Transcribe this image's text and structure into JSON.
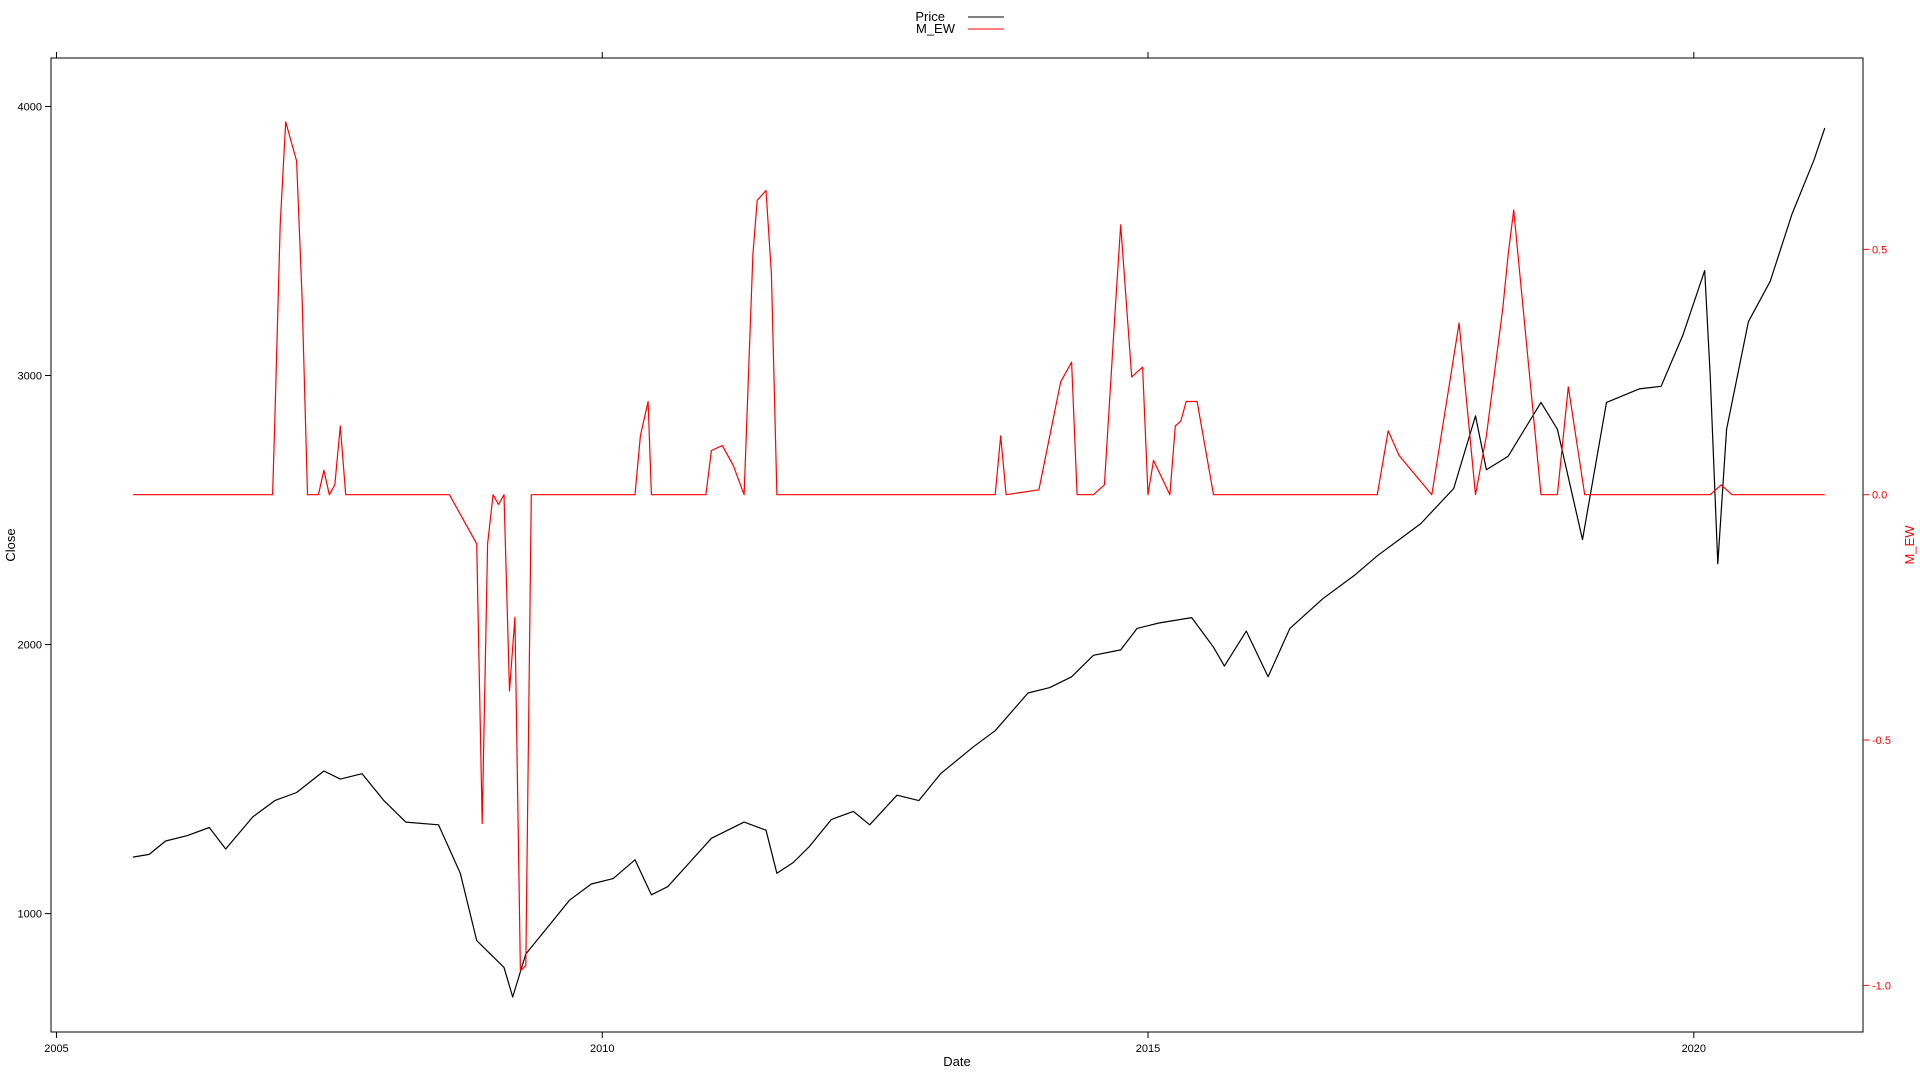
{
  "chart_data": {
    "type": "line",
    "title": "",
    "xlabel": "Date",
    "ylabel": "Close",
    "y2label": "M_EW",
    "grid": false,
    "legend_position": "top-center",
    "x_ticks": [
      "2005",
      "2010",
      "2015",
      "2020"
    ],
    "x_range": [
      2004.95,
      2021.55
    ],
    "y_ticks": [
      1000,
      2000,
      3000,
      4000
    ],
    "ylim": [
      560,
      4180
    ],
    "y2_ticks": [
      -1.0,
      -0.5,
      0.0,
      0.5
    ],
    "y2_tick_labels": [
      "-1.0",
      "-0.5",
      "0.0",
      "0.5"
    ],
    "y2lim": [
      -1.095,
      0.89
    ],
    "colors": {
      "Price": "#000000",
      "M_EW": "#ff0000"
    },
    "series": [
      {
        "name": "Price",
        "axis": "left",
        "x": [
          2005.7,
          2005.85,
          2006.0,
          2006.2,
          2006.4,
          2006.55,
          2006.8,
          2007.0,
          2007.2,
          2007.45,
          2007.6,
          2007.8,
          2008.0,
          2008.2,
          2008.5,
          2008.7,
          2008.85,
          2008.95,
          2009.1,
          2009.18,
          2009.3,
          2009.5,
          2009.7,
          2009.9,
          2010.1,
          2010.3,
          2010.45,
          2010.6,
          2010.8,
          2011.0,
          2011.3,
          2011.5,
          2011.6,
          2011.75,
          2011.9,
          2012.1,
          2012.3,
          2012.45,
          2012.7,
          2012.9,
          2013.1,
          2013.4,
          2013.6,
          2013.9,
          2014.1,
          2014.3,
          2014.5,
          2014.75,
          2014.9,
          2015.1,
          2015.4,
          2015.6,
          2015.7,
          2015.9,
          2016.1,
          2016.3,
          2016.6,
          2016.9,
          2017.1,
          2017.5,
          2017.8,
          2018.0,
          2018.1,
          2018.3,
          2018.6,
          2018.75,
          2018.98,
          2019.2,
          2019.5,
          2019.7,
          2019.9,
          2020.1,
          2020.15,
          2020.22,
          2020.3,
          2020.5,
          2020.7,
          2020.9,
          2021.1,
          2021.2
        ],
        "values": [
          1210,
          1220,
          1270,
          1290,
          1320,
          1240,
          1360,
          1420,
          1450,
          1530,
          1500,
          1520,
          1420,
          1340,
          1330,
          1150,
          900,
          860,
          800,
          690,
          850,
          950,
          1050,
          1110,
          1130,
          1200,
          1070,
          1100,
          1190,
          1280,
          1340,
          1310,
          1150,
          1190,
          1250,
          1350,
          1380,
          1330,
          1440,
          1420,
          1520,
          1620,
          1680,
          1820,
          1840,
          1880,
          1960,
          1980,
          2060,
          2080,
          2100,
          1990,
          1920,
          2050,
          1880,
          2060,
          2170,
          2260,
          2330,
          2450,
          2580,
          2850,
          2650,
          2700,
          2900,
          2800,
          2390,
          2900,
          2950,
          2960,
          3150,
          3390,
          3000,
          2300,
          2800,
          3200,
          3350,
          3600,
          3800,
          3920
        ]
      },
      {
        "name": "M_EW",
        "axis": "right",
        "x": [
          2005.7,
          2006.5,
          2006.98,
          2007.0,
          2007.05,
          2007.1,
          2007.15,
          2007.2,
          2007.25,
          2007.3,
          2007.4,
          2007.45,
          2007.5,
          2007.55,
          2007.6,
          2007.65,
          2007.7,
          2008.6,
          2008.85,
          2008.9,
          2008.95,
          2009.0,
          2009.05,
          2009.1,
          2009.15,
          2009.2,
          2009.25,
          2009.3,
          2009.35,
          2009.45,
          2009.5,
          2010.3,
          2010.35,
          2010.42,
          2010.45,
          2010.95,
          2011.0,
          2011.1,
          2011.2,
          2011.3,
          2011.38,
          2011.42,
          2011.5,
          2011.55,
          2011.6,
          2011.65,
          2013.5,
          2013.6,
          2013.65,
          2013.7,
          2014.0,
          2014.1,
          2014.2,
          2014.3,
          2014.35,
          2014.5,
          2014.6,
          2014.7,
          2014.75,
          2014.85,
          2014.95,
          2015.0,
          2015.05,
          2015.2,
          2015.25,
          2015.3,
          2015.35,
          2015.45,
          2015.6,
          2015.75,
          2017.0,
          2017.1,
          2017.2,
          2017.3,
          2017.6,
          2017.75,
          2017.85,
          2018.0,
          2018.1,
          2018.25,
          2018.3,
          2018.35,
          2018.6,
          2018.75,
          2018.85,
          2019.0,
          2020.0,
          2020.15,
          2020.25,
          2020.35,
          2021.2
        ],
        "values": [
          0.0,
          0.0,
          0.0,
          0.15,
          0.55,
          0.76,
          0.72,
          0.68,
          0.4,
          0.0,
          0.0,
          0.05,
          0.0,
          0.02,
          0.14,
          0.0,
          0.0,
          0.0,
          -0.1,
          -0.67,
          -0.1,
          0.0,
          -0.02,
          0.0,
          -0.4,
          -0.25,
          -0.97,
          -0.96,
          0.0,
          0.0,
          0.0,
          0.0,
          0.12,
          0.19,
          0.0,
          0.0,
          0.09,
          0.1,
          0.06,
          0.0,
          0.49,
          0.6,
          0.62,
          0.45,
          0.0,
          0.0,
          0.0,
          0.0,
          0.12,
          0.0,
          0.01,
          0.12,
          0.23,
          0.27,
          0.0,
          0.0,
          0.02,
          0.38,
          0.55,
          0.24,
          0.26,
          0.0,
          0.07,
          0.0,
          0.14,
          0.15,
          0.19,
          0.19,
          0.0,
          0.0,
          0.0,
          0.0,
          0.13,
          0.08,
          0.0,
          0.21,
          0.35,
          0.0,
          0.12,
          0.38,
          0.49,
          0.58,
          0.0,
          0.0,
          0.22,
          0.0,
          0.0,
          0.0,
          0.02,
          0.0,
          0.0
        ]
      }
    ]
  }
}
